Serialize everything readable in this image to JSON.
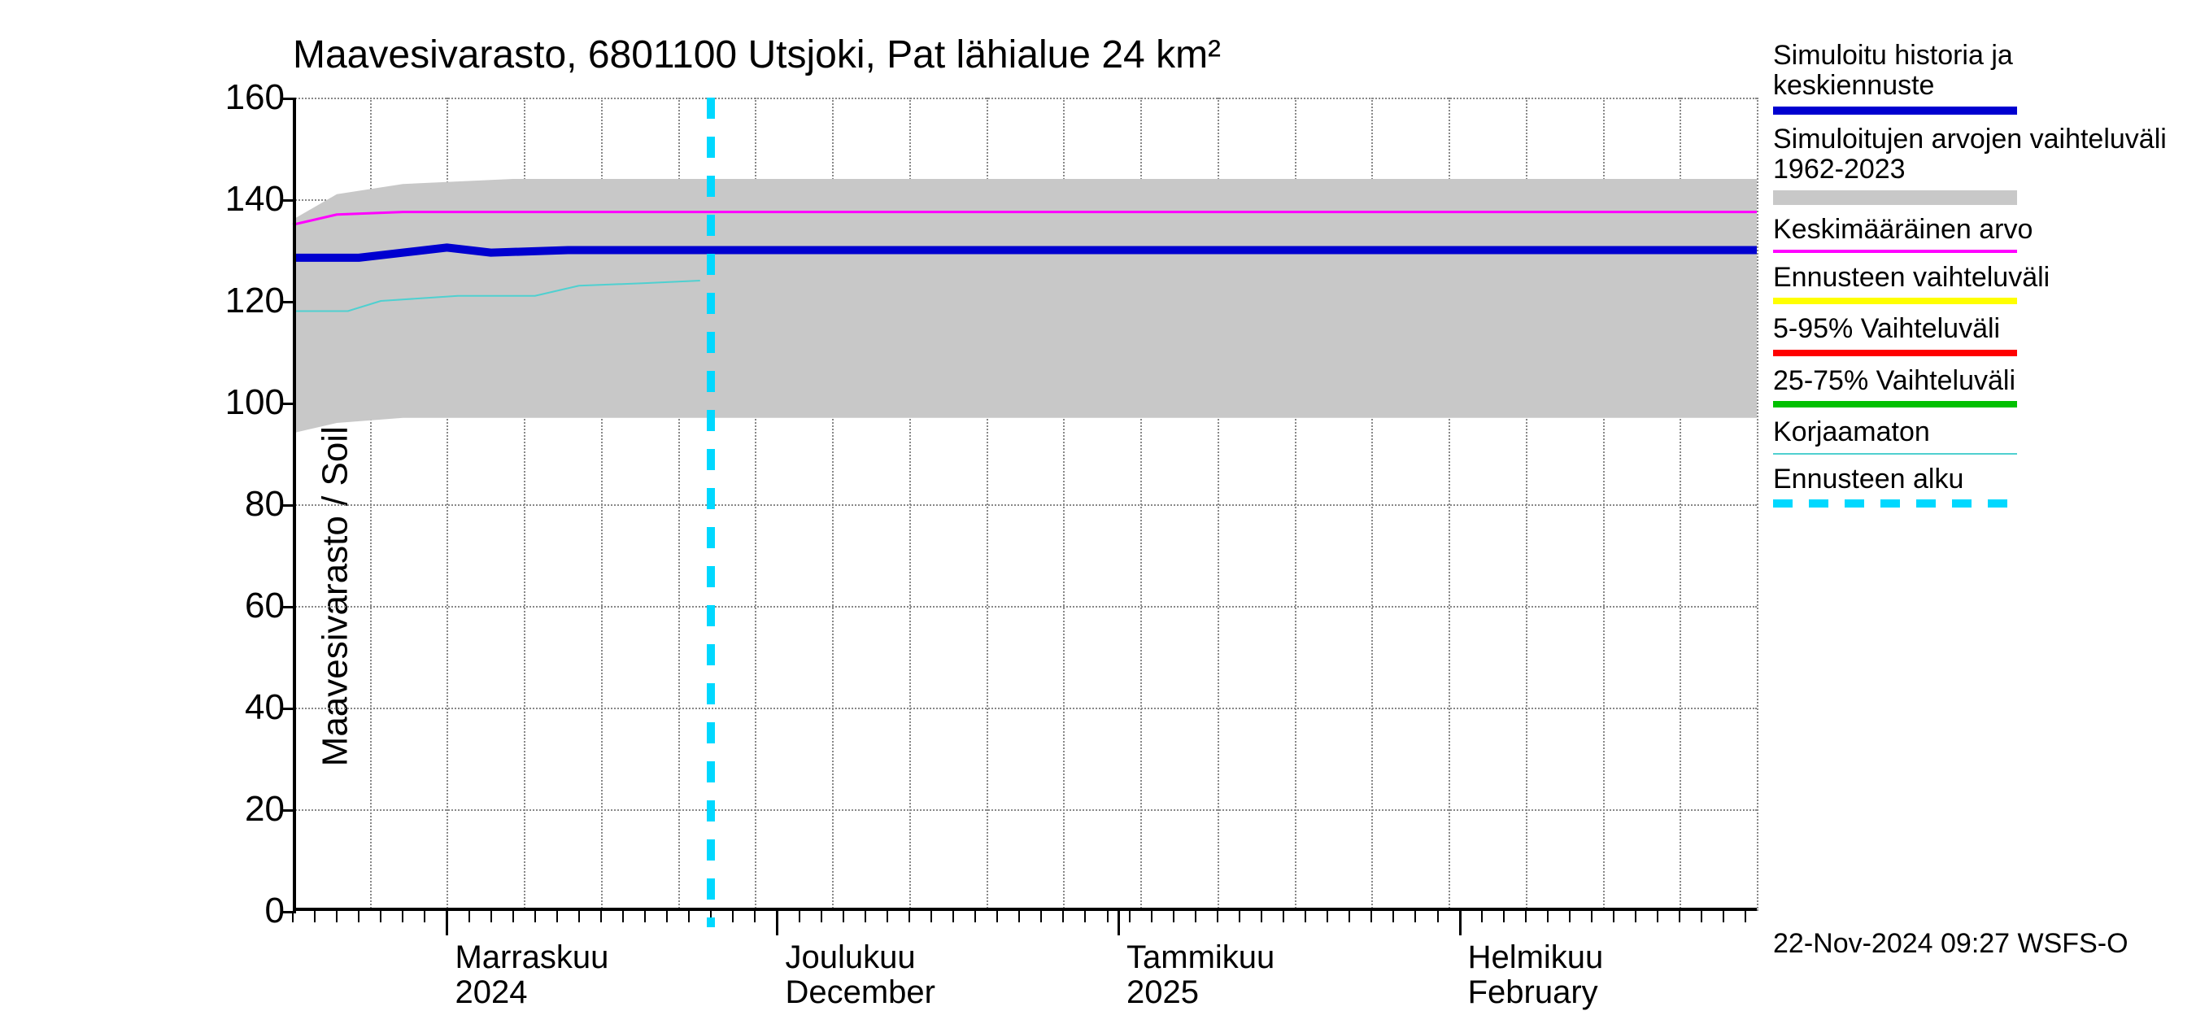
{
  "chart": {
    "type": "line",
    "title": "Maavesivarasto, 6801100 Utsjoki, Pat lähialue 24 km²",
    "ylabel": "Maavesivarasto / Soil moisture    mm",
    "footer": "22-Nov-2024 09:27 WSFS-O",
    "background_color": "#ffffff",
    "grid_color": "#888888",
    "grid_style": "dotted",
    "axis_color": "#000000",
    "ylim": [
      0,
      160
    ],
    "ytick_step": 20,
    "yticks": [
      0,
      20,
      40,
      60,
      80,
      100,
      120,
      140,
      160
    ],
    "xlim_days": [
      0,
      133
    ],
    "forecast_start_day": 38,
    "x_major_ticks": [
      {
        "day": 14,
        "line1": "Marraskuu",
        "line2": "2024"
      },
      {
        "day": 44,
        "line1": "Joulukuu",
        "line2": "December"
      },
      {
        "day": 75,
        "line1": "Tammikuu",
        "line2": "2025"
      },
      {
        "day": 106,
        "line1": "Helmikuu",
        "line2": "February"
      }
    ],
    "x_minor_tick_interval_days": 2,
    "x_grid_interval_days": 7,
    "band_color": "#c8c8c8",
    "band_upper": [
      {
        "day": 0,
        "val": 136
      },
      {
        "day": 4,
        "val": 141
      },
      {
        "day": 10,
        "val": 143
      },
      {
        "day": 20,
        "val": 144
      },
      {
        "day": 133,
        "val": 144
      }
    ],
    "band_lower": [
      {
        "day": 0,
        "val": 94
      },
      {
        "day": 4,
        "val": 96
      },
      {
        "day": 10,
        "val": 97
      },
      {
        "day": 20,
        "val": 97
      },
      {
        "day": 133,
        "val": 97
      }
    ],
    "series": {
      "keskimaarainen": {
        "color": "#ff00ff",
        "width": 3,
        "points": [
          {
            "day": 0,
            "val": 135
          },
          {
            "day": 4,
            "val": 137
          },
          {
            "day": 10,
            "val": 137.5
          },
          {
            "day": 45,
            "val": 137.5
          },
          {
            "day": 133,
            "val": 137.5
          }
        ]
      },
      "simuloitu": {
        "color": "#0000d0",
        "width": 10,
        "points": [
          {
            "day": 0,
            "val": 128.5
          },
          {
            "day": 6,
            "val": 128.5
          },
          {
            "day": 10,
            "val": 129.5
          },
          {
            "day": 14,
            "val": 130.5
          },
          {
            "day": 18,
            "val": 129.5
          },
          {
            "day": 25,
            "val": 130
          },
          {
            "day": 133,
            "val": 130
          }
        ]
      },
      "ennuste_vaihteluvali": {
        "color": "#ffff00",
        "width": 3,
        "points": [
          {
            "day": 38,
            "val": 130
          },
          {
            "day": 133,
            "val": 130
          }
        ]
      },
      "korjaamaton": {
        "color": "#4fd0d0",
        "width": 2,
        "points": [
          {
            "day": 0,
            "val": 118
          },
          {
            "day": 5,
            "val": 118
          },
          {
            "day": 8,
            "val": 120
          },
          {
            "day": 15,
            "val": 121
          },
          {
            "day": 22,
            "val": 121
          },
          {
            "day": 26,
            "val": 123
          },
          {
            "day": 32,
            "val": 123.5
          },
          {
            "day": 37,
            "val": 124
          }
        ]
      }
    },
    "forecast_line": {
      "color": "#00d8ff",
      "dash": [
        26,
        22
      ],
      "width": 10
    }
  },
  "legend": [
    {
      "label": "Simuloitu historia ja keskiennuste",
      "type": "line",
      "color": "#0000d0",
      "height": 10
    },
    {
      "label": "Simuloitujen arvojen vaihteluväli 1962-2023",
      "type": "band",
      "color": "#c8c8c8",
      "height": 18
    },
    {
      "label": "Keskimääräinen arvo",
      "type": "line",
      "color": "#ff00ff",
      "height": 4
    },
    {
      "label": "Ennusteen vaihteluväli",
      "type": "line",
      "color": "#ffff00",
      "height": 8
    },
    {
      "label": "5-95% Vaihteluväli",
      "type": "line",
      "color": "#ff0000",
      "height": 8
    },
    {
      "label": "25-75% Vaihteluväli",
      "type": "line",
      "color": "#00c000",
      "height": 8
    },
    {
      "label": "Korjaamaton",
      "type": "line",
      "color": "#4fd0d0",
      "height": 2
    },
    {
      "label": "Ennusteen alku",
      "type": "dash",
      "color": "#00d8ff",
      "height": 10
    }
  ]
}
